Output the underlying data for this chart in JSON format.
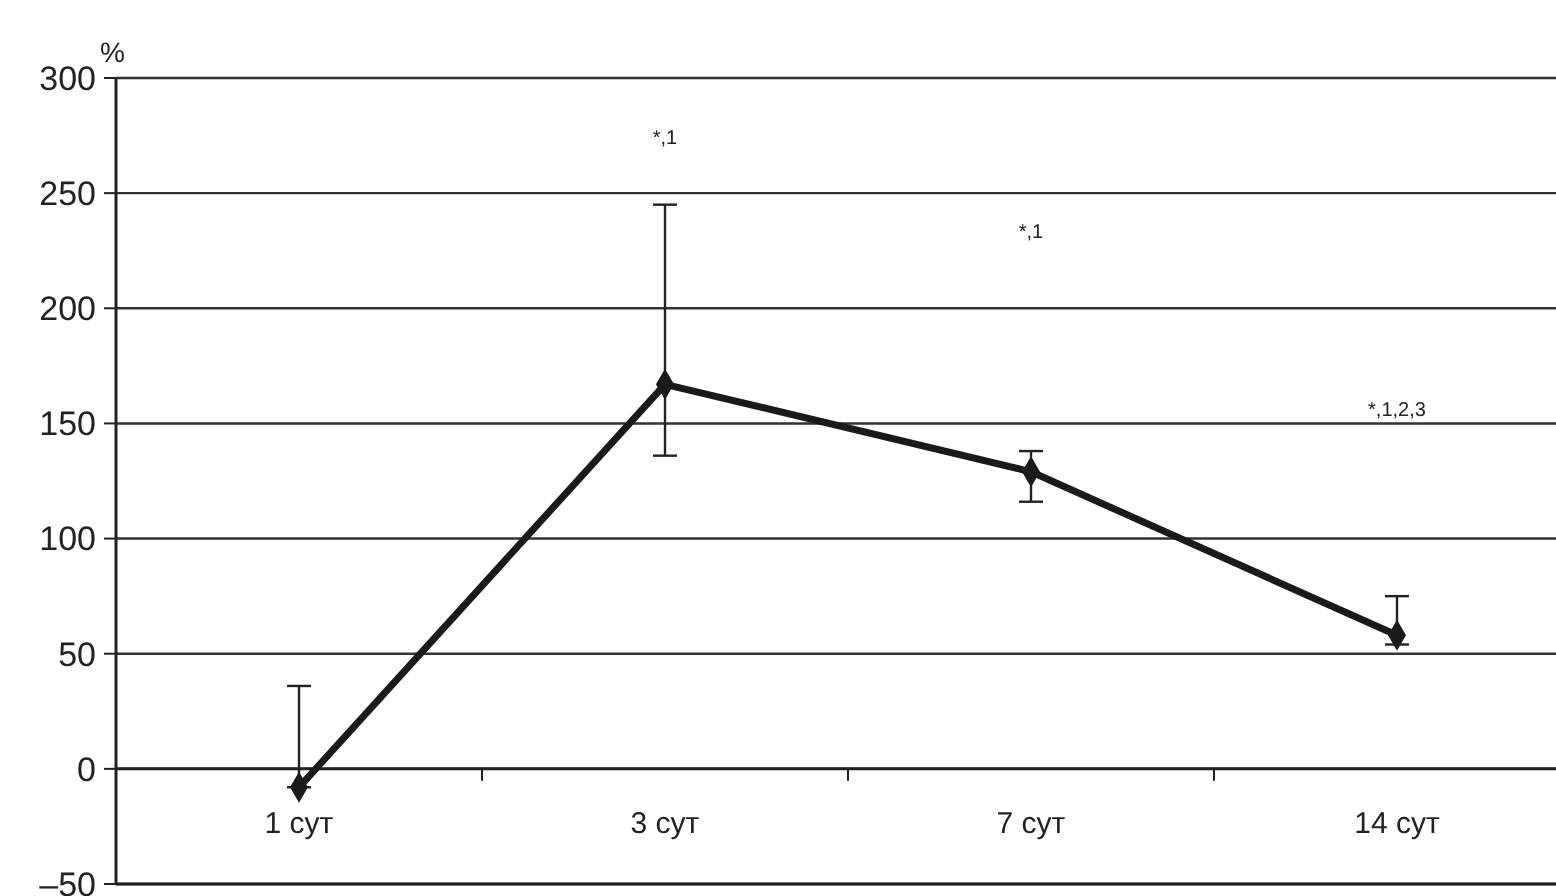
{
  "chart_data": {
    "type": "line",
    "ylabel": "%",
    "categories": [
      "1 сут",
      "3 сут",
      "7 сут",
      "14 сут"
    ],
    "series": [
      {
        "color": "#1a1a1a",
        "values": [
          -8,
          167,
          129,
          58
        ],
        "errors": [
          [
            -8,
            36
          ],
          [
            136,
            245
          ],
          [
            116,
            138
          ],
          [
            54,
            75
          ]
        ]
      }
    ],
    "ylim": [
      -50,
      300
    ],
    "yticks": [
      {
        "value": -50,
        "label": "–50"
      },
      0,
      50,
      100,
      150,
      200,
      250,
      300
    ],
    "grid": "y",
    "marker": "diamond",
    "line_style": "solid",
    "annotations": [
      "*,1",
      "*,1",
      "*,1,2,3"
    ]
  }
}
